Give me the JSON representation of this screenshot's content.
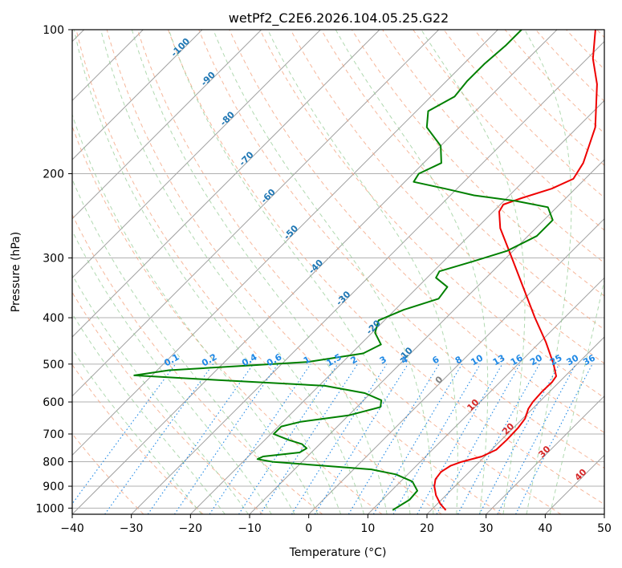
{
  "chart_data": {
    "type": "skew-t",
    "title": "wetPf2_C2E6.2026.104.05.25.G22",
    "xlabel": "Temperature (°C)",
    "ylabel": "Pressure (hPa)",
    "xlim": [
      -40,
      50
    ],
    "ylim": [
      1030,
      100
    ],
    "x_ticks": [
      -40,
      -30,
      -20,
      -10,
      0,
      10,
      20,
      30,
      40,
      50
    ],
    "y_ticks": [
      100,
      200,
      300,
      400,
      500,
      600,
      700,
      800,
      900,
      1000
    ],
    "grid": true,
    "series": [
      {
        "color": "#ee0000",
        "points": [
          {
            "p": 1010,
            "t": 22.5
          },
          {
            "p": 980,
            "t": 20.5
          },
          {
            "p": 940,
            "t": 18.3
          },
          {
            "p": 900,
            "t": 16.5
          },
          {
            "p": 870,
            "t": 15.5
          },
          {
            "p": 840,
            "t": 15.2
          },
          {
            "p": 815,
            "t": 15.8
          },
          {
            "p": 800,
            "t": 17.0
          },
          {
            "p": 780,
            "t": 19.5
          },
          {
            "p": 755,
            "t": 20.8
          },
          {
            "p": 720,
            "t": 20.9
          },
          {
            "p": 680,
            "t": 20.8
          },
          {
            "p": 650,
            "t": 20.4
          },
          {
            "p": 620,
            "t": 19.3
          },
          {
            "p": 600,
            "t": 18.9
          },
          {
            "p": 570,
            "t": 18.7
          },
          {
            "p": 545,
            "t": 18.8
          },
          {
            "p": 530,
            "t": 18.5
          },
          {
            "p": 500,
            "t": 16.0
          },
          {
            "p": 450,
            "t": 11.0
          },
          {
            "p": 400,
            "t": 5.0
          },
          {
            "p": 350,
            "t": -1.5
          },
          {
            "p": 300,
            "t": -9.0
          },
          {
            "p": 260,
            "t": -16.0
          },
          {
            "p": 240,
            "t": -19.0
          },
          {
            "p": 232,
            "t": -19.5
          },
          {
            "p": 225,
            "t": -17.5
          },
          {
            "p": 215,
            "t": -14.0
          },
          {
            "p": 205,
            "t": -12.0
          },
          {
            "p": 190,
            "t": -13.0
          },
          {
            "p": 160,
            "t": -17.0
          },
          {
            "p": 130,
            "t": -24.0
          },
          {
            "p": 115,
            "t": -29.0
          },
          {
            "p": 100,
            "t": -33.5
          }
        ]
      },
      {
        "color": "#008000",
        "points": [
          {
            "p": 1010,
            "t": 13.5
          },
          {
            "p": 960,
            "t": 14.6
          },
          {
            "p": 920,
            "t": 14.4
          },
          {
            "p": 880,
            "t": 12.0
          },
          {
            "p": 850,
            "t": 8.0
          },
          {
            "p": 830,
            "t": 3.0
          },
          {
            "p": 815,
            "t": -6.0
          },
          {
            "p": 800,
            "t": -15.0
          },
          {
            "p": 790,
            "t": -18.0
          },
          {
            "p": 780,
            "t": -17.5
          },
          {
            "p": 765,
            "t": -12.0
          },
          {
            "p": 750,
            "t": -11.5
          },
          {
            "p": 735,
            "t": -13.0
          },
          {
            "p": 720,
            "t": -16.0
          },
          {
            "p": 700,
            "t": -19.5
          },
          {
            "p": 675,
            "t": -19.5
          },
          {
            "p": 660,
            "t": -17.0
          },
          {
            "p": 640,
            "t": -10.0
          },
          {
            "p": 615,
            "t": -6.0
          },
          {
            "p": 595,
            "t": -7.0
          },
          {
            "p": 575,
            "t": -11.0
          },
          {
            "p": 555,
            "t": -19.0
          },
          {
            "p": 540,
            "t": -38.0
          },
          {
            "p": 528,
            "t": -53.0
          },
          {
            "p": 515,
            "t": -48.0
          },
          {
            "p": 505,
            "t": -37.0
          },
          {
            "p": 495,
            "t": -26.0
          },
          {
            "p": 475,
            "t": -18.0
          },
          {
            "p": 455,
            "t": -16.5
          },
          {
            "p": 430,
            "t": -19.5
          },
          {
            "p": 405,
            "t": -21.0
          },
          {
            "p": 385,
            "t": -18.5
          },
          {
            "p": 365,
            "t": -14.5
          },
          {
            "p": 345,
            "t": -15.0
          },
          {
            "p": 330,
            "t": -18.5
          },
          {
            "p": 320,
            "t": -19.0
          },
          {
            "p": 305,
            "t": -15.0
          },
          {
            "p": 290,
            "t": -11.0
          },
          {
            "p": 270,
            "t": -8.5
          },
          {
            "p": 250,
            "t": -8.5
          },
          {
            "p": 235,
            "t": -11.5
          },
          {
            "p": 228,
            "t": -18.0
          },
          {
            "p": 222,
            "t": -26.0
          },
          {
            "p": 215,
            "t": -32.0
          },
          {
            "p": 208,
            "t": -38.5
          },
          {
            "p": 200,
            "t": -39.0
          },
          {
            "p": 190,
            "t": -37.0
          },
          {
            "p": 175,
            "t": -40.0
          },
          {
            "p": 160,
            "t": -45.5
          },
          {
            "p": 148,
            "t": -48.0
          },
          {
            "p": 138,
            "t": -46.0
          },
          {
            "p": 128,
            "t": -46.5
          },
          {
            "p": 118,
            "t": -46.5
          },
          {
            "p": 108,
            "t": -46.0
          },
          {
            "p": 100,
            "t": -46.0
          }
        ]
      }
    ],
    "dry_adiabat_labels": [
      {
        "text": "-100",
        "p": 110,
        "t": -100,
        "color": "#1f77b4"
      },
      {
        "text": "-90",
        "p": 128,
        "t": -90,
        "color": "#1f77b4"
      },
      {
        "text": "-80",
        "p": 155,
        "t": -80,
        "color": "#1f77b4"
      },
      {
        "text": "-70",
        "p": 188,
        "t": -70,
        "color": "#1f77b4"
      },
      {
        "text": "-60",
        "p": 225,
        "t": -60,
        "color": "#1f77b4"
      },
      {
        "text": "-50",
        "p": 268,
        "t": -50,
        "color": "#1f77b4"
      },
      {
        "text": "-40",
        "p": 316,
        "t": -40,
        "color": "#1f77b4"
      },
      {
        "text": "-30",
        "p": 368,
        "t": -30,
        "color": "#1f77b4"
      },
      {
        "text": "-20",
        "p": 423,
        "t": -20,
        "color": "#1f77b4"
      },
      {
        "text": "-10",
        "p": 482,
        "t": -10,
        "color": "#1f77b4"
      },
      {
        "text": "0",
        "p": 545,
        "t": 0,
        "color": "#808080"
      },
      {
        "text": "10",
        "p": 615,
        "t": 10,
        "color": "#d62728"
      },
      {
        "text": "20",
        "p": 690,
        "t": 20,
        "color": "#d62728"
      },
      {
        "text": "30",
        "p": 770,
        "t": 30,
        "color": "#d62728"
      },
      {
        "text": "40",
        "p": 860,
        "t": 40,
        "color": "#d62728"
      }
    ],
    "mixing_ratio_labels": [
      "0.1",
      "0.2",
      "0.4",
      "0.6",
      "1",
      "1.5",
      "2",
      "3",
      "4",
      "6",
      "8",
      "10",
      "13",
      "16",
      "20",
      "25",
      "30",
      "36"
    ],
    "colors": {
      "temperature": "#ee0000",
      "dewpoint": "#008000",
      "isotherm": "#a0a0a0",
      "dry_adiabat": "#f4a582",
      "moist_adiabat": "#8fc98f",
      "mixing_ratio": "#1e88e5",
      "isobar": "#b0b0b0"
    }
  }
}
